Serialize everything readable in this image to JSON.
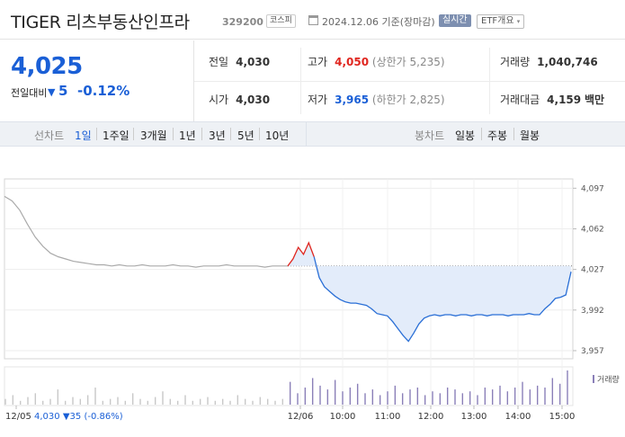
{
  "header": {
    "name": "TIGER 리츠부동산인프라",
    "code": "329200",
    "market_badge": "코스피",
    "date_text": "2024.12.06 기준(장마감)",
    "realtime_label": "실시간",
    "etf_overview_label": "ETF개요"
  },
  "quote": {
    "price": "4,025",
    "change_label": "전일대비",
    "change_value": "5",
    "change_pct": "-0.12%",
    "prev_close_label": "전일",
    "prev_close": "4,030",
    "high_label": "고가",
    "high": "4,050",
    "upper_limit_text": "(상한가 5,235)",
    "volume_label": "거래량",
    "volume": "1,040,746",
    "open_label": "시가",
    "open": "4,030",
    "low_label": "저가",
    "low": "3,965",
    "lower_limit_text": "(하한가 2,825)",
    "amount_label": "거래대금",
    "amount": "4,159",
    "amount_unit": "백만"
  },
  "tabs": {
    "line_label": "선차트",
    "line_items": [
      "1일",
      "1주일",
      "3개월",
      "1년",
      "3년",
      "5년",
      "10년"
    ],
    "active": "1일",
    "candle_label": "봉차트",
    "candle_items": [
      "일봉",
      "주봉",
      "월봉"
    ]
  },
  "chart_data": {
    "type": "line",
    "y_ticks": [
      "4,097",
      "4,062",
      "4,027",
      "3,992",
      "3,957"
    ],
    "y_tick_values": [
      4097,
      4062,
      4027,
      3992,
      3957
    ],
    "ylim": [
      3950,
      4105
    ],
    "reference_price": 4030,
    "x_tick_labels": [
      "12/05",
      "12/06",
      "10:00",
      "11:00",
      "12:00",
      "13:00",
      "14:00",
      "15:00"
    ],
    "volume_label": "거래량",
    "series": [
      {
        "values": [
          4090,
          4086,
          4078,
          4066,
          4055,
          4047,
          4041,
          4038,
          4036,
          4034,
          4033,
          4032,
          4031,
          4031,
          4030,
          4031,
          4030,
          4030,
          4031,
          4030,
          4030,
          4030,
          4031,
          4030,
          4030,
          4029,
          4030,
          4030,
          4030,
          4031,
          4030,
          4030,
          4030,
          4030,
          4029,
          4030,
          4030,
          4030
        ]
      },
      {
        "values": [
          4030,
          4036,
          4046,
          4040,
          4050,
          4038,
          4020,
          4012,
          4008,
          4004,
          4001,
          3999,
          3998,
          3998,
          3997,
          3996,
          3993,
          3989,
          3988,
          3987,
          3982,
          3976,
          3970,
          3965,
          3972,
          3980,
          3985,
          3987,
          3988,
          3987,
          3988,
          3988,
          3987,
          3988,
          3988,
          3987,
          3988,
          3988,
          3987,
          3988,
          3988,
          3988,
          3987,
          3988,
          3988,
          3988,
          3989,
          3988,
          3988,
          3993,
          3997,
          4002,
          4003,
          4005,
          4025
        ]
      }
    ],
    "volume_values": [
      3,
      5,
      2,
      4,
      6,
      2,
      3,
      8,
      2,
      4,
      3,
      5,
      9,
      2,
      3,
      4,
      2,
      6,
      3,
      2,
      4,
      7,
      3,
      2,
      5,
      2,
      3,
      4,
      2,
      3,
      2,
      5,
      3,
      2,
      4,
      3,
      2,
      3,
      12,
      6,
      9,
      14,
      10,
      8,
      13,
      7,
      9,
      11,
      6,
      8,
      5,
      7,
      10,
      6,
      8,
      9,
      5,
      7,
      6,
      9,
      8,
      6,
      7,
      5,
      9,
      8,
      10,
      7,
      9,
      12,
      8,
      10,
      9,
      14,
      11,
      18
    ]
  },
  "bottom": {
    "date": "12/05",
    "price": "4,030",
    "change": "▼35",
    "pct": "(-0.86%)"
  }
}
